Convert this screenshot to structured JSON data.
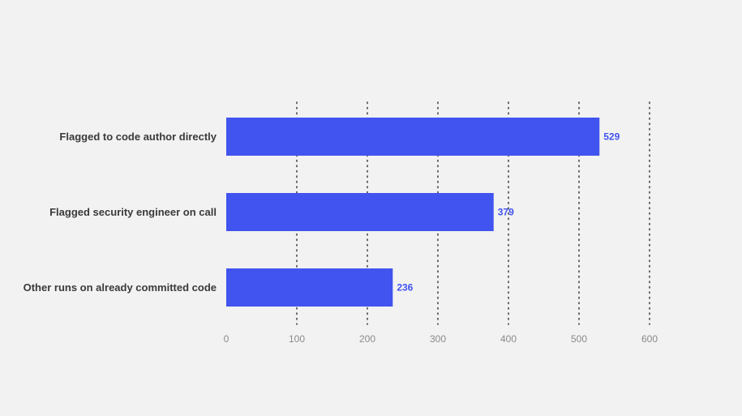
{
  "chart_data": {
    "type": "bar",
    "orientation": "horizontal",
    "categories": [
      "Flagged to code author directly",
      "Flagged security engineer on call",
      "Other runs on already committed code"
    ],
    "values": [
      529,
      379,
      236
    ],
    "value_labels": [
      "529",
      "379",
      "236"
    ],
    "title": "",
    "xlabel": "",
    "ylabel": "",
    "xlim": [
      0,
      600
    ],
    "ticks": [
      0,
      100,
      200,
      300,
      400,
      500,
      600
    ],
    "tick_labels": [
      "0",
      "100",
      "200",
      "300",
      "400",
      "500",
      "600"
    ],
    "grid": "vertical-dotted",
    "legend": "none",
    "colors": {
      "background": "#f2f2f2",
      "bar": "#4154ef",
      "value_label": "#4154ef",
      "category_label": "#3a3a3a",
      "tick_label": "#8a8a8a",
      "grid": "#3a3a3a"
    }
  }
}
